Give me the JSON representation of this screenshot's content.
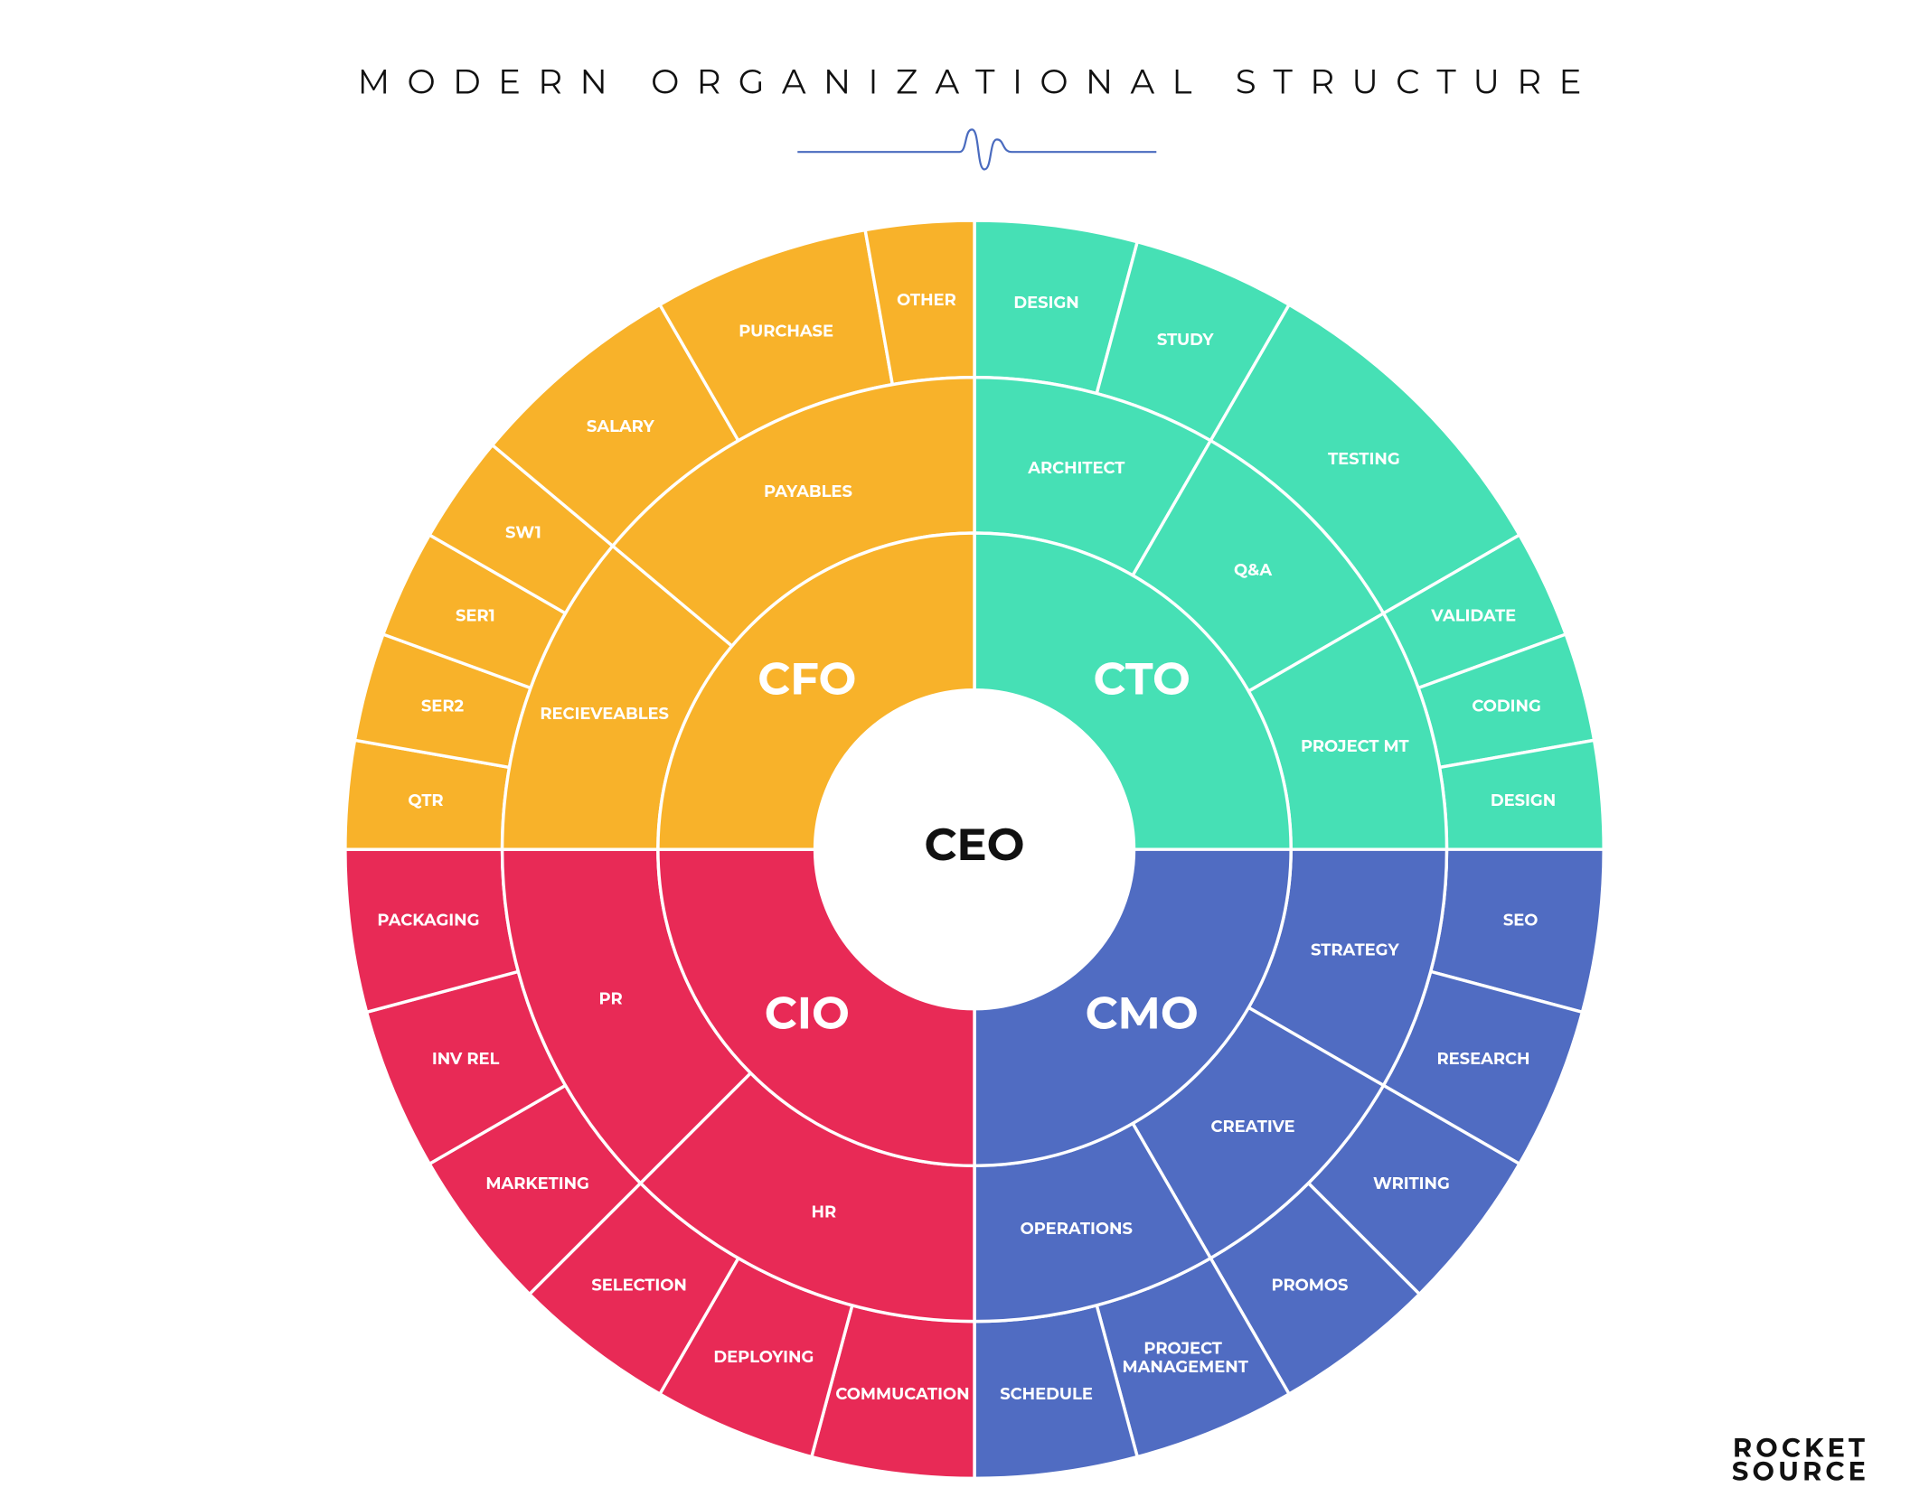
{
  "title": "MODERN ORGANIZATIONAL STRUCTURE",
  "center": {
    "label": "CEO"
  },
  "departments": [
    {
      "label": "CTO",
      "color": "#46e0b5",
      "units": [
        {
          "label": "ARCHITECT",
          "teams": [
            "DESIGN",
            "STUDY"
          ]
        },
        {
          "label": "Q&A",
          "teams": [
            "TESTING"
          ]
        },
        {
          "label": "PROJECT MT",
          "teams": [
            "VALIDATE",
            "CODING",
            "DESIGN"
          ]
        }
      ]
    },
    {
      "label": "CMO",
      "color": "#506cc2",
      "units": [
        {
          "label": "STRATEGY",
          "teams": [
            "SEO",
            "RESEARCH"
          ]
        },
        {
          "label": "CREATIVE",
          "teams": [
            "WRITING",
            "PROMOS"
          ]
        },
        {
          "label": "OPERATIONS",
          "teams": [
            "PROJECT MANAGEMENT",
            "SCHEDULE"
          ]
        }
      ]
    },
    {
      "label": "CIO",
      "color": "#e82a56",
      "units": [
        {
          "label": "HR",
          "teams": [
            "COMMUCATION",
            "DEPLOYING",
            "SELECTION"
          ]
        },
        {
          "label": "PR",
          "teams": [
            "MARKETING",
            "INV REL",
            "PACKAGING"
          ]
        }
      ]
    },
    {
      "label": "CFO",
      "color": "#f8b22a",
      "units": [
        {
          "label": "RECIEVEABLES",
          "teams": [
            "QTR",
            "SER2",
            "SER1",
            "SW1"
          ]
        },
        {
          "label": "PAYABLES",
          "teams": [
            "SALARY",
            "PURCHASE",
            "OTHER"
          ]
        }
      ]
    }
  ],
  "logo": {
    "line1": "ROCKET",
    "line2": "SOURCE"
  }
}
